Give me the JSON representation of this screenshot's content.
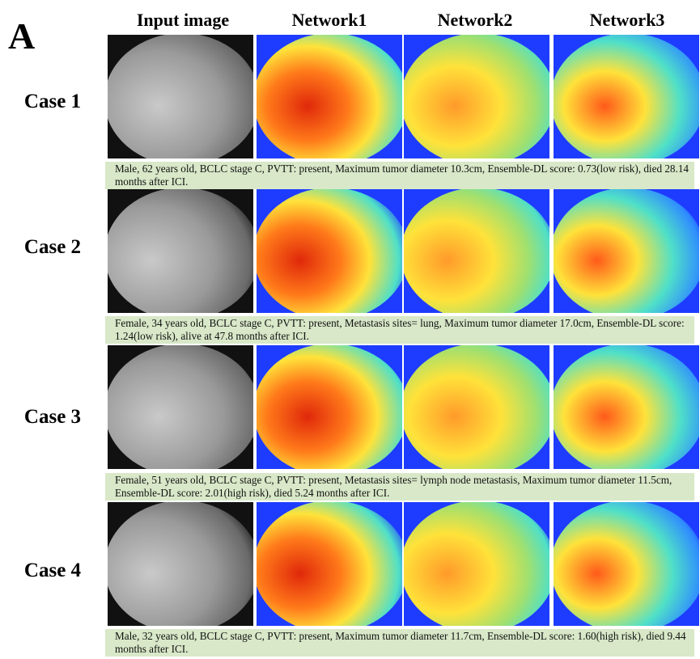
{
  "panel_letter": "A",
  "columns": [
    "Input image",
    "Network1",
    "Network2",
    "Network3"
  ],
  "cases": [
    {
      "label": "Case 1",
      "caption": "Male, 62 years old, BCLC stage C, PVTT: present, Maximum tumor diameter 10.3cm, Ensemble-DL score: 0.73(low risk), died 28.14 months after ICI."
    },
    {
      "label": "Case 2",
      "caption": "Female, 34 years old, BCLC stage C, PVTT: present, Metastasis sites= lung, Maximum tumor diameter 17.0cm, Ensemble-DL score: 1.24(low risk), alive at 47.8 months after ICI."
    },
    {
      "label": "Case 3",
      "caption": "Female, 51 years old, BCLC stage C, PVTT: present, Metastasis sites= lymph node metastasis, Maximum tumor diameter 11.5cm, Ensemble-DL score: 2.01(high risk), died 5.24 months after ICI."
    },
    {
      "label": "Case 4",
      "caption": "Male, 32 years old, BCLC stage C, PVTT: present, Maximum tumor diameter 11.7cm, Ensemble-DL score: 1.60(high risk), died 9.44 months after ICI."
    }
  ],
  "colors": {
    "caption_bg": "#d8e8c8",
    "heatmap_cold": "#1e3cff",
    "heatmap_mid": "#4fe0c8",
    "heatmap_warm": "#ffe23a",
    "heatmap_hot": "#e0280a"
  }
}
